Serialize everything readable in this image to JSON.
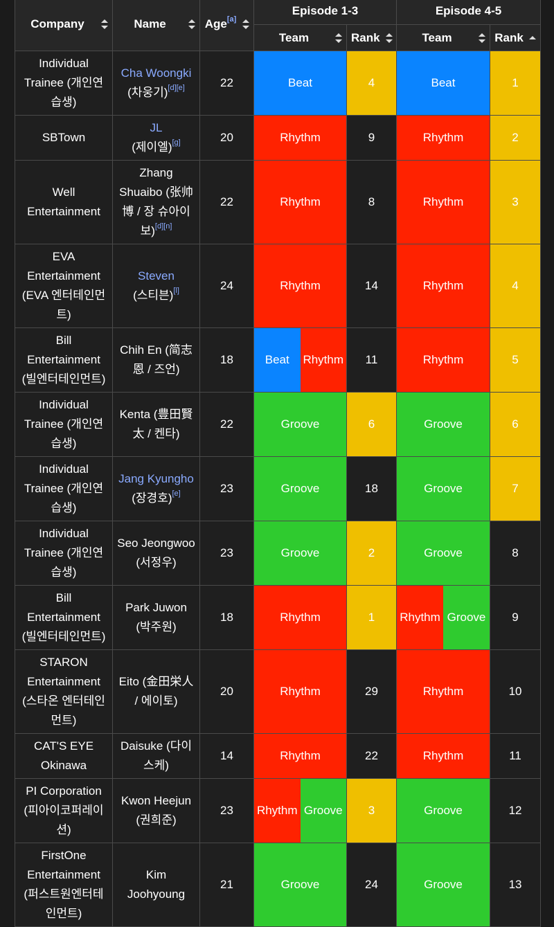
{
  "headers": {
    "company": "Company",
    "name": "Name",
    "age": "Age",
    "age_note": "[a]",
    "ep13": "Episode 1-3",
    "ep45": "Episode 4-5",
    "team": "Team",
    "rank": "Rank"
  },
  "rows": [
    {
      "company": "Individual Trainee (개인연습생)",
      "name_link": "Cha Woongki",
      "name_native": "(차웅기)",
      "notes": "[d][e]",
      "age": "22",
      "ep13_team": [
        {
          "label": "Beat",
          "color": "beat"
        }
      ],
      "ep13_rank": "4",
      "ep13_rank_highlight": true,
      "ep45_team": [
        {
          "label": "Beat",
          "color": "beat"
        }
      ],
      "ep45_rank": "1",
      "ep45_rank_highlight": true
    },
    {
      "company": "SBTown",
      "name_link": "JL",
      "name_native": "(제이엘)",
      "notes": "[g]",
      "age": "20",
      "ep13_team": [
        {
          "label": "Rhythm",
          "color": "rhythm"
        }
      ],
      "ep13_rank": "9",
      "ep13_rank_highlight": false,
      "ep45_team": [
        {
          "label": "Rhythm",
          "color": "rhythm"
        }
      ],
      "ep45_rank": "2",
      "ep45_rank_highlight": true
    },
    {
      "company": "Well Entertainment",
      "name_plain": "Zhang Shuaibo (张帅博 / 장 슈아이 보)",
      "notes": "[d][n]",
      "age": "22",
      "ep13_team": [
        {
          "label": "Rhythm",
          "color": "rhythm"
        }
      ],
      "ep13_rank": "8",
      "ep13_rank_highlight": false,
      "ep45_team": [
        {
          "label": "Rhythm",
          "color": "rhythm"
        }
      ],
      "ep45_rank": "3",
      "ep45_rank_highlight": true
    },
    {
      "company": "EVA Entertainment (EVA 엔터테인먼트)",
      "name_link": "Steven",
      "name_native": "(스티븐)",
      "notes": "[l]",
      "age": "24",
      "ep13_team": [
        {
          "label": "Rhythm",
          "color": "rhythm"
        }
      ],
      "ep13_rank": "14",
      "ep13_rank_highlight": false,
      "ep45_team": [
        {
          "label": "Rhythm",
          "color": "rhythm"
        }
      ],
      "ep45_rank": "4",
      "ep45_rank_highlight": true
    },
    {
      "company": "Bill Entertainment (빌엔터테인먼트)",
      "name_plain": "Chih En (简志恩 / 즈언)",
      "age": "18",
      "ep13_team": [
        {
          "label": "Beat",
          "color": "beat"
        },
        {
          "label": "Rhythm",
          "color": "rhythm"
        }
      ],
      "ep13_rank": "11",
      "ep13_rank_highlight": false,
      "ep45_team": [
        {
          "label": "Rhythm",
          "color": "rhythm"
        }
      ],
      "ep45_rank": "5",
      "ep45_rank_highlight": true
    },
    {
      "company": "Individual Trainee (개인연습생)",
      "name_plain": "Kenta (豊田賢太 / 켄타)",
      "age": "22",
      "ep13_team": [
        {
          "label": "Groove",
          "color": "groove"
        }
      ],
      "ep13_rank": "6",
      "ep13_rank_highlight": true,
      "ep45_team": [
        {
          "label": "Groove",
          "color": "groove"
        }
      ],
      "ep45_rank": "6",
      "ep45_rank_highlight": true
    },
    {
      "company": "Individual Trainee (개인연습생)",
      "name_link": "Jang Kyungho",
      "name_native": "(장경호)",
      "notes": "[e]",
      "age": "23",
      "ep13_team": [
        {
          "label": "Groove",
          "color": "groove"
        }
      ],
      "ep13_rank": "18",
      "ep13_rank_highlight": false,
      "ep45_team": [
        {
          "label": "Groove",
          "color": "groove"
        }
      ],
      "ep45_rank": "7",
      "ep45_rank_highlight": true
    },
    {
      "company": "Individual Trainee (개인연습생)",
      "name_plain": "Seo Jeongwoo (서정우)",
      "age": "23",
      "ep13_team": [
        {
          "label": "Groove",
          "color": "groove"
        }
      ],
      "ep13_rank": "2",
      "ep13_rank_highlight": true,
      "ep45_team": [
        {
          "label": "Groove",
          "color": "groove"
        }
      ],
      "ep45_rank": "8",
      "ep45_rank_highlight": false
    },
    {
      "company": "Bill Entertainment (빌엔터테인먼트)",
      "name_plain": "Park Juwon (박주원)",
      "age": "18",
      "ep13_team": [
        {
          "label": "Rhythm",
          "color": "rhythm"
        }
      ],
      "ep13_rank": "1",
      "ep13_rank_highlight": true,
      "ep45_team": [
        {
          "label": "Rhythm",
          "color": "rhythm"
        },
        {
          "label": "Groove",
          "color": "groove"
        }
      ],
      "ep45_rank": "9",
      "ep45_rank_highlight": false
    },
    {
      "company": "STARON Entertainment (스타온 엔터테인먼트)",
      "name_plain": "Eito (金田栄人 / 에이토)",
      "age": "20",
      "ep13_team": [
        {
          "label": "Rhythm",
          "color": "rhythm"
        }
      ],
      "ep13_rank": "29",
      "ep13_rank_highlight": false,
      "ep45_team": [
        {
          "label": "Rhythm",
          "color": "rhythm"
        }
      ],
      "ep45_rank": "10",
      "ep45_rank_highlight": false
    },
    {
      "company": "CAT'S EYE Okinawa",
      "name_plain": "Daisuke (다이스케)",
      "age": "14",
      "ep13_team": [
        {
          "label": "Rhythm",
          "color": "rhythm"
        }
      ],
      "ep13_rank": "22",
      "ep13_rank_highlight": false,
      "ep45_team": [
        {
          "label": "Rhythm",
          "color": "rhythm"
        }
      ],
      "ep45_rank": "11",
      "ep45_rank_highlight": false
    },
    {
      "company": "PI Corporation (피아이코퍼레이션)",
      "name_plain": "Kwon Heejun (권희준)",
      "age": "23",
      "ep13_team": [
        {
          "label": "Rhythm",
          "color": "rhythm"
        },
        {
          "label": "Groove",
          "color": "groove"
        }
      ],
      "ep13_rank": "3",
      "ep13_rank_highlight": true,
      "ep45_team": [
        {
          "label": "Groove",
          "color": "groove"
        }
      ],
      "ep45_rank": "12",
      "ep45_rank_highlight": false
    },
    {
      "company": "FirstOne Entertainment (퍼스트원엔터테인먼트)",
      "name_plain": "Kim Joohyoung",
      "age": "21",
      "ep13_team": [
        {
          "label": "Groove",
          "color": "groove"
        }
      ],
      "ep13_rank": "24",
      "ep13_rank_highlight": false,
      "ep45_team": [
        {
          "label": "Groove",
          "color": "groove"
        }
      ],
      "ep45_rank": "13",
      "ep45_rank_highlight": false
    }
  ]
}
